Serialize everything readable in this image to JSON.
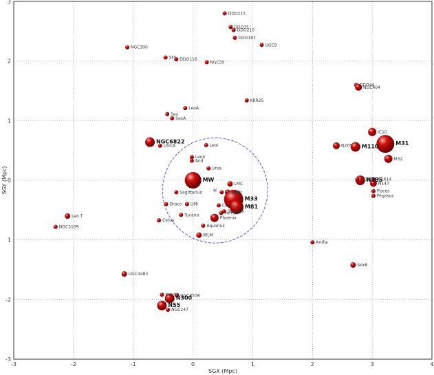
{
  "chart_data": {
    "type": "scatter",
    "xlabel": "SGX (Mpc)",
    "ylabel": "SGY (Mpc)",
    "xlim": [
      -3,
      4
    ],
    "ylim": [
      -3,
      3
    ],
    "x_ticks": [
      "-3",
      "-2",
      "-1",
      "0",
      "1",
      "2",
      "3",
      "4"
    ],
    "y_ticks": [
      "3",
      "2",
      "1",
      "0",
      "1",
      "-2",
      "-3"
    ],
    "grid": true,
    "grid_style": "dotted",
    "point_color": "#d01010",
    "circle": {
      "cx": 0.37,
      "cy": -0.17,
      "r": 0.88,
      "color": "#5a5ad8",
      "style": "dashed"
    },
    "marker_star": {
      "x": 0.37,
      "y": -0.17,
      "color": "#5a5ad8"
    },
    "points": [
      {
        "x": 0.53,
        "y": 2.8,
        "size": 3,
        "label": "DDO215"
      },
      {
        "x": 0.63,
        "y": 2.57,
        "size": 3,
        "label": "DDO75"
      },
      {
        "x": 0.68,
        "y": 2.52,
        "size": 3,
        "label": "DDO210"
      },
      {
        "x": 0.7,
        "y": 2.39,
        "size": 3,
        "label": "DDO187"
      },
      {
        "x": 1.15,
        "y": 2.27,
        "size": 3,
        "label": "UGC9"
      },
      {
        "x": -1.1,
        "y": 2.23,
        "size": 3,
        "label": "NGC300"
      },
      {
        "x": -0.46,
        "y": 2.06,
        "size": 3,
        "label": "SFS"
      },
      {
        "x": -0.28,
        "y": 2.03,
        "size": 3,
        "label": "DDO116"
      },
      {
        "x": 0.23,
        "y": 1.98,
        "size": 3,
        "label": "NGC55"
      },
      {
        "x": 0.9,
        "y": 1.34,
        "size": 3,
        "label": "KKR25"
      },
      {
        "x": 2.73,
        "y": 1.6,
        "size": 3,
        "label": "DDO44"
      },
      {
        "x": 2.77,
        "y": 1.56,
        "size": 5,
        "label": "NGC404"
      },
      {
        "x": -0.13,
        "y": 1.21,
        "size": 3,
        "label": "LeoA"
      },
      {
        "x": -0.43,
        "y": 1.11,
        "size": 3,
        "label": "Sex"
      },
      {
        "x": -0.35,
        "y": 1.04,
        "size": 3,
        "label": "SexA"
      },
      {
        "x": 3.0,
        "y": 0.81,
        "size": 6,
        "label": "IC10"
      },
      {
        "x": 3.22,
        "y": 0.61,
        "size": 13,
        "label": "M31"
      },
      {
        "x": 2.4,
        "y": 0.58,
        "size": 5,
        "label": "N205"
      },
      {
        "x": 2.72,
        "y": 0.56,
        "size": 7,
        "label": "M110"
      },
      {
        "x": 3.27,
        "y": 0.36,
        "size": 6,
        "label": "M32"
      },
      {
        "x": -0.72,
        "y": 0.64,
        "size": 7,
        "label": "NGC6822"
      },
      {
        "x": -0.55,
        "y": 0.58,
        "size": 3,
        "label": "UGCA"
      },
      {
        "x": 0.22,
        "y": 0.59,
        "size": 3,
        "label": "LeoI"
      },
      {
        "x": -0.02,
        "y": 0.39,
        "size": 3,
        "label": "LeoII"
      },
      {
        "x": -0.02,
        "y": 0.33,
        "size": 3,
        "label": "And"
      },
      {
        "x": 0.26,
        "y": 0.2,
        "size": 3,
        "label": "Ursa"
      },
      {
        "x": 0.0,
        "y": 0.0,
        "size": 12,
        "label": "MW"
      },
      {
        "x": 2.8,
        "y": 0.0,
        "size": 7,
        "label": "N185"
      },
      {
        "x": 3.02,
        "y": -0.05,
        "size": 5,
        "label": "N147"
      },
      {
        "x": 2.75,
        "y": 0.02,
        "size": 3,
        "label": "IC1613"
      },
      {
        "x": 3.02,
        "y": 0.02,
        "size": 3,
        "label": "IC1614"
      },
      {
        "x": 3.02,
        "y": -0.18,
        "size": 3,
        "label": "Pisces"
      },
      {
        "x": 3.02,
        "y": -0.26,
        "size": 3,
        "label": "Pegasus"
      },
      {
        "x": 0.62,
        "y": -0.06,
        "size": 4,
        "label": "LMC"
      },
      {
        "x": 0.58,
        "y": -0.2,
        "size": 4,
        "label": "SMC"
      },
      {
        "x": 0.48,
        "y": -0.2,
        "size": 3,
        "label": "Sculptor"
      },
      {
        "x": -0.28,
        "y": -0.2,
        "size": 3,
        "label": "Sagittarius"
      },
      {
        "x": 0.68,
        "y": -0.32,
        "size": 14,
        "label": "M33"
      },
      {
        "x": 0.73,
        "y": -0.45,
        "size": 10,
        "label": "M81"
      },
      {
        "x": -0.45,
        "y": -0.4,
        "size": 3,
        "label": "Draco"
      },
      {
        "x": -0.1,
        "y": -0.4,
        "size": 3,
        "label": "UMi"
      },
      {
        "x": 0.43,
        "y": -0.42,
        "size": 3,
        "label": "Carina"
      },
      {
        "x": 0.47,
        "y": -0.55,
        "size": 3,
        "label": "Fornax"
      },
      {
        "x": 0.52,
        "y": -0.52,
        "size": 3,
        "label": "Sextans"
      },
      {
        "x": 0.36,
        "y": -0.63,
        "size": 6,
        "label": "Phoenix"
      },
      {
        "x": -0.2,
        "y": -0.58,
        "size": 3,
        "label": "Tucana"
      },
      {
        "x": -0.57,
        "y": -0.67,
        "size": 3,
        "label": "Cetus"
      },
      {
        "x": 0.17,
        "y": -0.76,
        "size": 3,
        "label": "Aquarius"
      },
      {
        "x": 0.1,
        "y": -0.92,
        "size": 4,
        "label": "WLM"
      },
      {
        "x": -2.1,
        "y": -0.6,
        "size": 4,
        "label": "Leo T"
      },
      {
        "x": -2.3,
        "y": -0.78,
        "size": 3,
        "label": "NGC3109"
      },
      {
        "x": 2.0,
        "y": -1.04,
        "size": 3,
        "label": "Antlia"
      },
      {
        "x": 2.68,
        "y": -1.42,
        "size": 4,
        "label": "SexB"
      },
      {
        "x": -1.15,
        "y": -1.57,
        "size": 4,
        "label": "UGC4483"
      },
      {
        "x": -0.52,
        "y": -1.92,
        "size": 3,
        "label": "KKH98"
      },
      {
        "x": -0.27,
        "y": -1.93,
        "size": 3,
        "label": "UGC8508"
      },
      {
        "x": -0.39,
        "y": -1.98,
        "size": 7,
        "label": "N300"
      },
      {
        "x": -0.52,
        "y": -2.1,
        "size": 7,
        "label": "N55"
      },
      {
        "x": -0.42,
        "y": -2.17,
        "size": 3,
        "label": "NGC247"
      }
    ]
  }
}
